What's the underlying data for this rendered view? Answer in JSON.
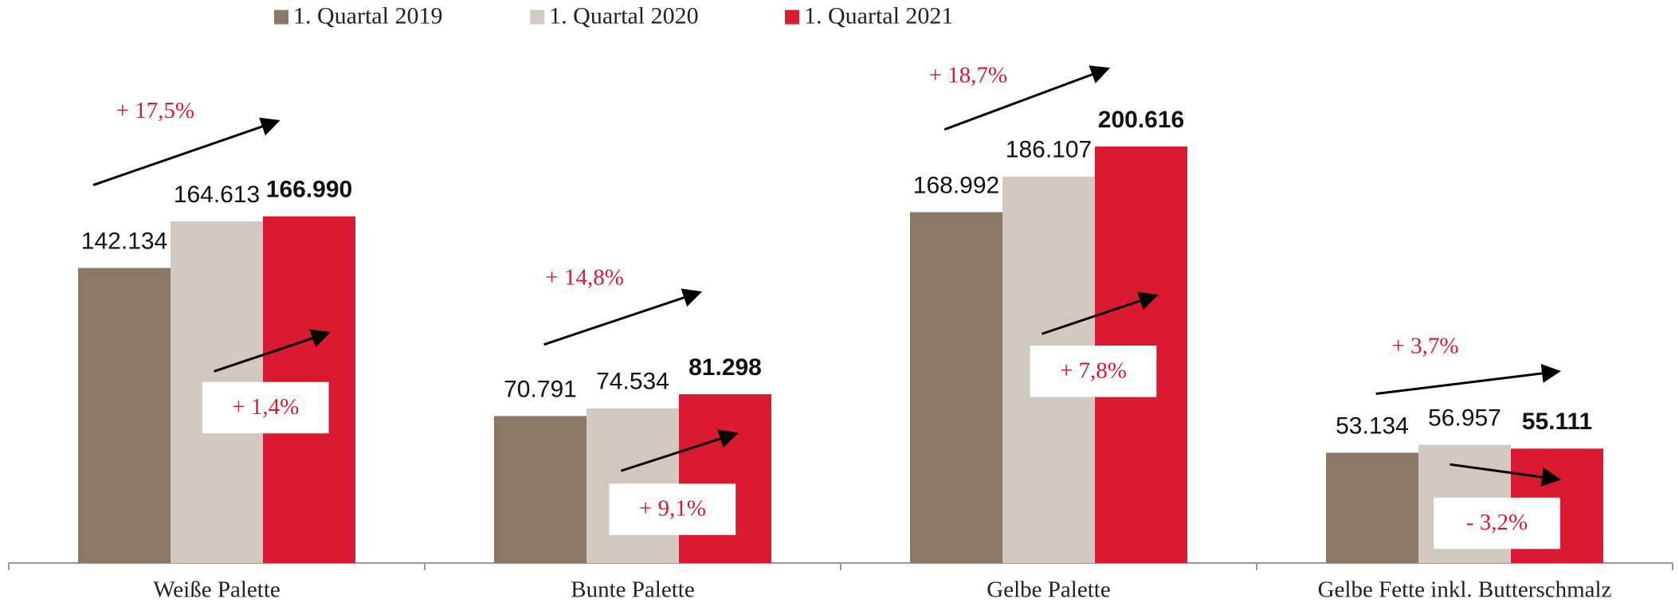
{
  "chart_data": {
    "type": "bar",
    "categories": [
      "Weiße Palette",
      "Bunte Palette",
      "Gelbe Palette",
      "Gelbe Fette inkl. Butterschmalz"
    ],
    "series": [
      {
        "name": "1. Quartal 2019",
        "color": "#8c7864",
        "values": [
          142134,
          70791,
          168992,
          53134
        ],
        "value_labels": [
          "142.134",
          "70.791",
          "168.992",
          "53.134"
        ]
      },
      {
        "name": "1. Quartal 2020",
        "color": "#d1c8bf",
        "values": [
          164613,
          74534,
          186107,
          56957
        ],
        "value_labels": [
          "164.613",
          "74.534",
          "186.107",
          "56.957"
        ]
      },
      {
        "name": "1. Quartal 2021",
        "color": "#d91a30",
        "values": [
          166990,
          81298,
          200616,
          55111
        ],
        "value_labels": [
          "166.990",
          "81.298",
          "200.616",
          "55.111"
        ]
      }
    ],
    "annotations_top": [
      "+ 17,5%",
      "+ 14,8%",
      "+ 18,7%",
      "+ 3,7%"
    ],
    "annotations_box": [
      "+ 1,4%",
      "+ 9,1%",
      "+ 7,8%",
      "- 3,2%"
    ],
    "legend": "top"
  }
}
